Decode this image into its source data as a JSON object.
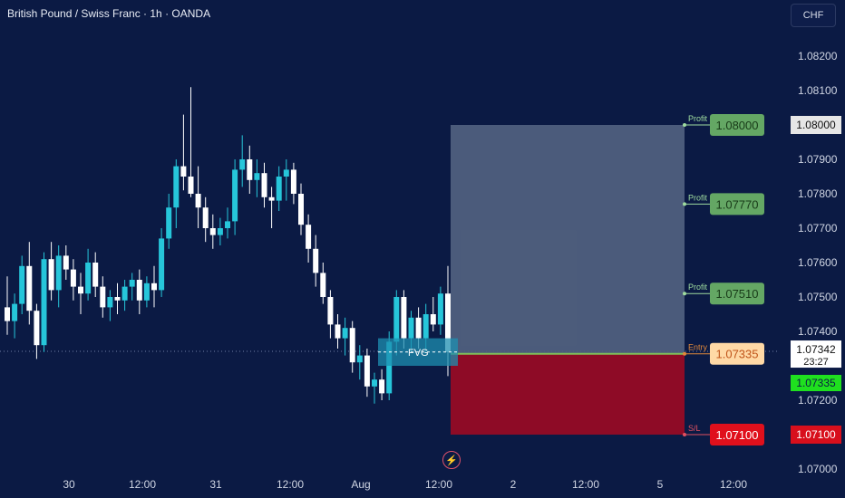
{
  "header": {
    "title": "British Pound / Swiss Franc · 1h · OANDA",
    "currency_button": "CHF"
  },
  "price_axis": {
    "ticks": [
      "1.08200",
      "1.08100",
      "1.07900",
      "1.07800",
      "1.07700",
      "1.07600",
      "1.07500",
      "1.07400",
      "1.07200",
      "1.07000"
    ],
    "current_price": "1.07342",
    "countdown": "23:27",
    "entry_tag": "1.07335",
    "tp_tag": "1.08000",
    "sl_tag": "1.07100"
  },
  "time_axis": {
    "ticks": [
      "30",
      "12:00",
      "31",
      "12:00",
      "Aug",
      "12:00",
      "2",
      "12:00",
      "5",
      "12:00"
    ]
  },
  "trade_setup": {
    "fvg_label": "FVG",
    "labels": [
      {
        "caption": "Profit",
        "value": "1.08000"
      },
      {
        "caption": "Profit",
        "value": "1.07770"
      },
      {
        "caption": "Profit",
        "value": "1.07510"
      },
      {
        "caption": "Entry",
        "value": "1.07335"
      },
      {
        "caption": "S/L",
        "value": "1.07100"
      }
    ]
  },
  "colors": {
    "background": "#0b1a44",
    "bull_candle": "#26c6da",
    "bear_candle": "#ffffff",
    "profit_zone": "#4f5f7e",
    "loss_zone": "#8e0b26",
    "profit_tag": "#64a764",
    "entry_tag": "#ffd9a6",
    "sl_tag": "#e0101c",
    "fvg_box": "#1d8fb0"
  },
  "chart_data": {
    "type": "candlestick",
    "symbol": "GBPCHF",
    "timeframe": "1h",
    "candles": [
      [
        1.0747,
        1.0756,
        1.0739,
        1.0743
      ],
      [
        1.0743,
        1.0751,
        1.0738,
        1.0748
      ],
      [
        1.0748,
        1.0762,
        1.0745,
        1.0759
      ],
      [
        1.0759,
        1.0766,
        1.0742,
        1.0746
      ],
      [
        1.0746,
        1.0748,
        1.0732,
        1.0736
      ],
      [
        1.0736,
        1.0763,
        1.0734,
        1.0761
      ],
      [
        1.0761,
        1.0766,
        1.0749,
        1.0752
      ],
      [
        1.0752,
        1.0765,
        1.0747,
        1.0762
      ],
      [
        1.0762,
        1.0765,
        1.0755,
        1.0758
      ],
      [
        1.0758,
        1.0761,
        1.0749,
        1.0753
      ],
      [
        1.0753,
        1.0757,
        1.0745,
        1.0751
      ],
      [
        1.0751,
        1.0764,
        1.0749,
        1.076
      ],
      [
        1.076,
        1.0763,
        1.075,
        1.0753
      ],
      [
        1.0753,
        1.0756,
        1.0744,
        1.0747
      ],
      [
        1.0747,
        1.0752,
        1.0743,
        1.075
      ],
      [
        1.075,
        1.0754,
        1.0745,
        1.0749
      ],
      [
        1.0749,
        1.0755,
        1.0746,
        1.0753
      ],
      [
        1.0753,
        1.0757,
        1.0749,
        1.0755
      ],
      [
        1.0755,
        1.0758,
        1.0745,
        1.0749
      ],
      [
        1.0749,
        1.0756,
        1.0747,
        1.0754
      ],
      [
        1.0754,
        1.0759,
        1.0747,
        1.0752
      ],
      [
        1.0752,
        1.077,
        1.075,
        1.0767
      ],
      [
        1.0767,
        1.078,
        1.0764,
        1.0776
      ],
      [
        1.0776,
        1.079,
        1.077,
        1.0788
      ],
      [
        1.0788,
        1.0803,
        1.0781,
        1.0785
      ],
      [
        1.0785,
        1.0811,
        1.0779,
        1.078
      ],
      [
        1.078,
        1.0788,
        1.077,
        1.0776
      ],
      [
        1.0776,
        1.0779,
        1.0766,
        1.077
      ],
      [
        1.077,
        1.0774,
        1.0764,
        1.0768
      ],
      [
        1.0768,
        1.0773,
        1.0765,
        1.077
      ],
      [
        1.077,
        1.0776,
        1.0767,
        1.0772
      ],
      [
        1.0772,
        1.079,
        1.0768,
        1.0787
      ],
      [
        1.0787,
        1.0797,
        1.0782,
        1.079
      ],
      [
        1.079,
        1.0794,
        1.078,
        1.0784
      ],
      [
        1.0784,
        1.079,
        1.0779,
        1.0786
      ],
      [
        1.0786,
        1.0789,
        1.0776,
        1.0779
      ],
      [
        1.0779,
        1.0782,
        1.077,
        1.0778
      ],
      [
        1.0778,
        1.0788,
        1.0775,
        1.0785
      ],
      [
        1.0785,
        1.079,
        1.0778,
        1.0787
      ],
      [
        1.0787,
        1.0789,
        1.0777,
        1.078
      ],
      [
        1.078,
        1.0783,
        1.0768,
        1.0771
      ],
      [
        1.0771,
        1.0774,
        1.076,
        1.0764
      ],
      [
        1.0764,
        1.0768,
        1.0753,
        1.0757
      ],
      [
        1.0757,
        1.076,
        1.0748,
        1.075
      ],
      [
        1.075,
        1.0752,
        1.0738,
        1.0742
      ],
      [
        1.0742,
        1.0745,
        1.0735,
        1.0738
      ],
      [
        1.0738,
        1.0744,
        1.0733,
        1.0741
      ],
      [
        1.0741,
        1.0743,
        1.0728,
        1.0731
      ],
      [
        1.0731,
        1.0736,
        1.0726,
        1.0733
      ],
      [
        1.0733,
        1.0735,
        1.0721,
        1.0724
      ],
      [
        1.0724,
        1.0728,
        1.0719,
        1.0726
      ],
      [
        1.0726,
        1.0729,
        1.072,
        1.0722
      ],
      [
        1.0722,
        1.074,
        1.072,
        1.0737
      ],
      [
        1.0737,
        1.0752,
        1.0733,
        1.075
      ],
      [
        1.075,
        1.0752,
        1.0735,
        1.0738
      ],
      [
        1.0738,
        1.0746,
        1.0734,
        1.0744
      ],
      [
        1.0744,
        1.0747,
        1.0735,
        1.0738
      ],
      [
        1.0738,
        1.0748,
        1.0734,
        1.0745
      ],
      [
        1.0745,
        1.075,
        1.074,
        1.0742
      ],
      [
        1.0742,
        1.0753,
        1.0739,
        1.0751
      ],
      [
        1.0751,
        1.0759,
        1.0727,
        1.0734
      ]
    ],
    "levels": {
      "take_profit_1": 1.0751,
      "take_profit_2": 1.0777,
      "take_profit_3": 1.08,
      "entry": 1.07335,
      "stop_loss": 1.071,
      "last_price": 1.07342
    },
    "y_range": [
      1.07,
      1.083
    ]
  }
}
